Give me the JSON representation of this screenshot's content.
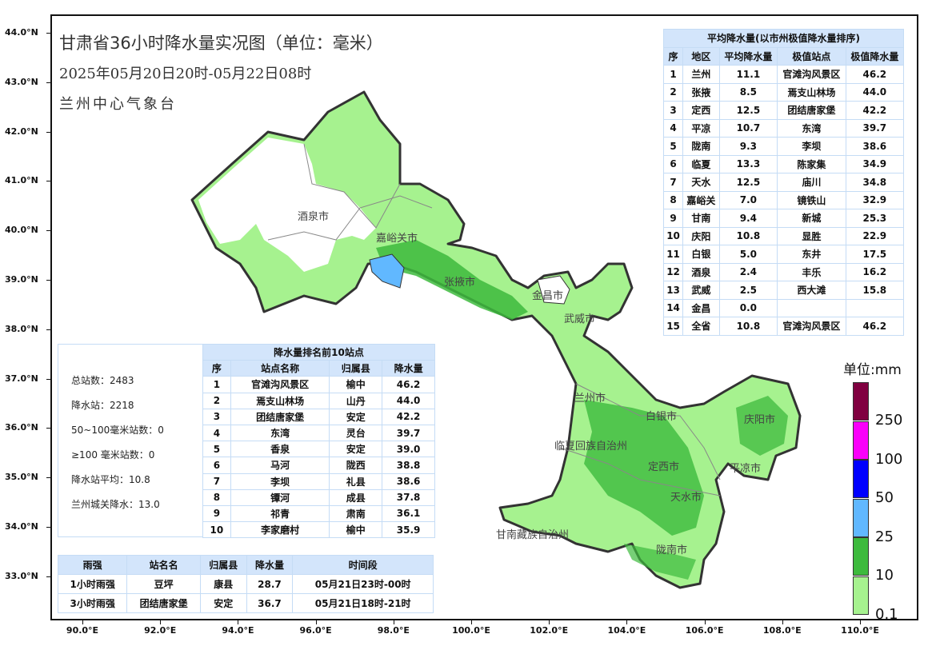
{
  "header": {
    "title": "甘肃省36小时降水量实况图（单位：毫米）",
    "subtitle": "2025年05月20日20时-05月22日08时",
    "org": "兰州中心气象台"
  },
  "axes": {
    "lat_ticks": [
      "44.0°N",
      "43.0°N",
      "42.0°N",
      "41.0°N",
      "40.0°N",
      "39.0°N",
      "38.0°N",
      "37.0°N",
      "36.0°N",
      "35.0°N",
      "34.0°N",
      "33.0°N"
    ],
    "lon_ticks": [
      "90.0°E",
      "92.0°E",
      "94.0°E",
      "96.0°E",
      "98.0°E",
      "100.0°E",
      "102.0°E",
      "104.0°E",
      "106.0°E",
      "108.0°E",
      "110.0°E"
    ]
  },
  "map": {
    "city_labels": [
      "酒泉市",
      "嘉峪关市",
      "张掖市",
      "金昌市",
      "武威市",
      "兰州市",
      "白银市",
      "庆阳市",
      "临夏回族自治州",
      "定西市",
      "平凉市",
      "天水市",
      "甘南藏族自治州",
      "陇南市"
    ],
    "colors": {
      "none": "#ffffff",
      "c0_1": "#a6f28f",
      "c10": "#3dba3d",
      "c25": "#61b8ff",
      "c50": "#0000ff",
      "c100": "#fa00fa",
      "c250": "#800040",
      "border": "#333333",
      "county_line": "#888888"
    }
  },
  "avg_table": {
    "title": "平均降水量(以市州极值降水量排序)",
    "headers": [
      "序",
      "地区",
      "平均降水量",
      "极值站点",
      "极值降水量"
    ],
    "rows": [
      [
        "1",
        "兰州",
        "11.1",
        "官滩沟风景区",
        "46.2"
      ],
      [
        "2",
        "张掖",
        "8.5",
        "焉支山林场",
        "44.0"
      ],
      [
        "3",
        "定西",
        "12.5",
        "团结唐家堡",
        "42.2"
      ],
      [
        "4",
        "平凉",
        "10.7",
        "东湾",
        "39.7"
      ],
      [
        "5",
        "陇南",
        "9.3",
        "李坝",
        "38.6"
      ],
      [
        "6",
        "临夏",
        "13.3",
        "陈家集",
        "34.9"
      ],
      [
        "7",
        "天水",
        "12.5",
        "庙川",
        "34.8"
      ],
      [
        "8",
        "嘉峪关",
        "7.0",
        "镜铁山",
        "32.9"
      ],
      [
        "9",
        "甘南",
        "9.4",
        "新城",
        "25.3"
      ],
      [
        "10",
        "庆阳",
        "10.8",
        "显胜",
        "22.9"
      ],
      [
        "11",
        "白银",
        "5.0",
        "东井",
        "17.5"
      ],
      [
        "12",
        "酒泉",
        "2.4",
        "丰乐",
        "16.2"
      ],
      [
        "13",
        "武威",
        "2.5",
        "西大滩",
        "15.8"
      ],
      [
        "14",
        "金昌",
        "0.0",
        "",
        ""
      ],
      [
        "15",
        "全省",
        "10.8",
        "官滩沟风景区",
        "46.2"
      ]
    ]
  },
  "stats": [
    "总站数：2483",
    "降水站：2218",
    "50~100毫米站数：0",
    "≥100 毫米站数：0",
    "降水站平均：10.8",
    "兰州城关降水：13.0"
  ],
  "top10_table": {
    "title": "降水量排名前10站点",
    "headers": [
      "序",
      "站点名称",
      "归属县",
      "降水量"
    ],
    "rows": [
      [
        "1",
        "官滩沟风景区",
        "榆中",
        "46.2"
      ],
      [
        "2",
        "焉支山林场",
        "山丹",
        "44.0"
      ],
      [
        "3",
        "团结唐家堡",
        "安定",
        "42.2"
      ],
      [
        "4",
        "东湾",
        "灵台",
        "39.7"
      ],
      [
        "5",
        "香泉",
        "安定",
        "39.0"
      ],
      [
        "6",
        "马河",
        "陇西",
        "38.8"
      ],
      [
        "7",
        "李坝",
        "礼县",
        "38.6"
      ],
      [
        "8",
        "镡河",
        "成县",
        "37.8"
      ],
      [
        "9",
        "祁青",
        "肃南",
        "36.1"
      ],
      [
        "10",
        "李家磨村",
        "榆中",
        "35.9"
      ]
    ]
  },
  "intensity_table": {
    "headers": [
      "雨强",
      "站名名",
      "归属县",
      "降水量",
      "时间段"
    ],
    "rows": [
      [
        "1小时雨强",
        "豆坪",
        "康县",
        "28.7",
        "05月21日23时-00时"
      ],
      [
        "3小时雨强",
        "团结唐家堡",
        "安定",
        "36.7",
        "05月21日18时-21时"
      ]
    ]
  },
  "legend": {
    "title": "单位:mm",
    "labels": [
      "250",
      "100",
      "50",
      "25",
      "10",
      "0.1"
    ],
    "colors": [
      "#800040",
      "#fa00fa",
      "#0000ff",
      "#61b8ff",
      "#3dba3d",
      "#a6f28f"
    ]
  }
}
